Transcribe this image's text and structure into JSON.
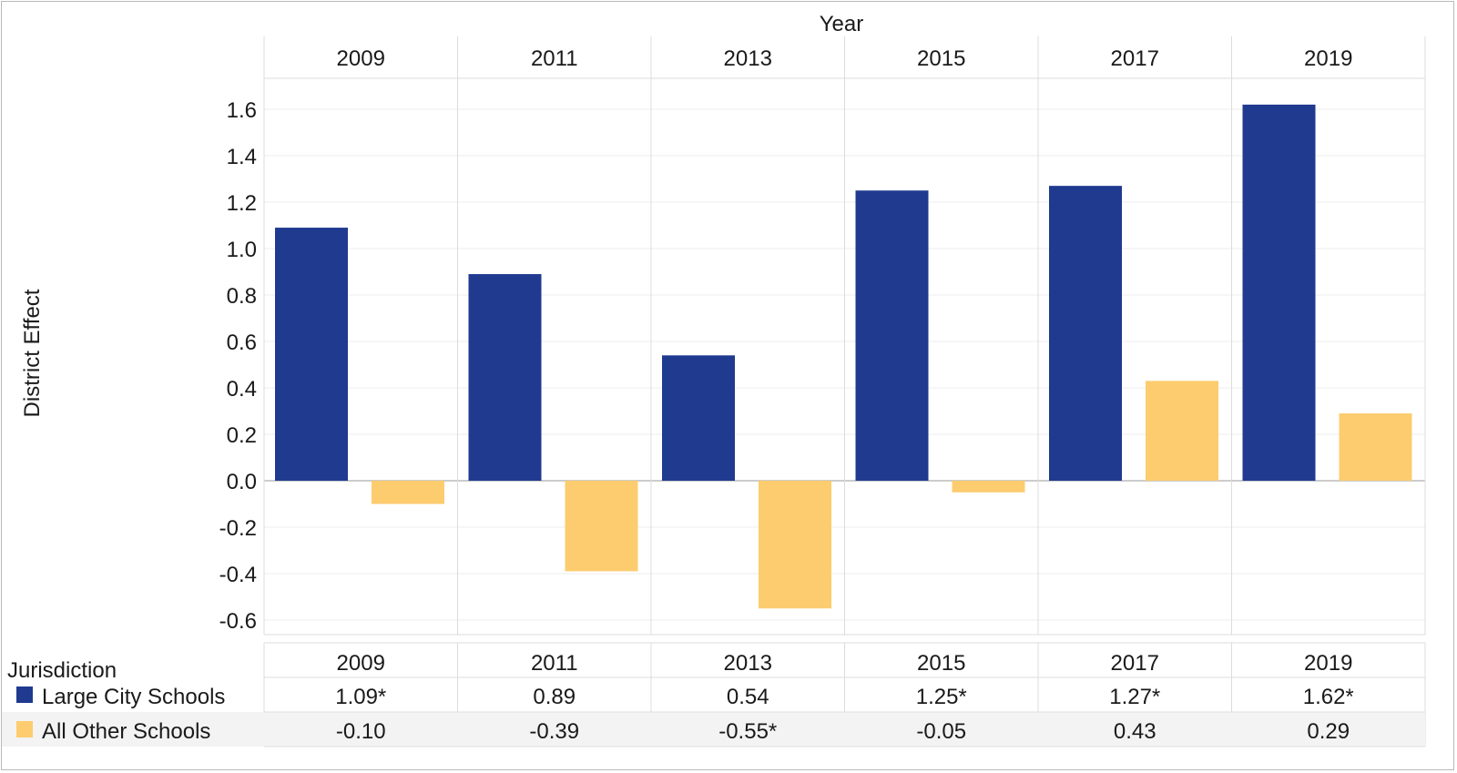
{
  "chart_data": {
    "type": "bar",
    "title": "",
    "top_axis_label": "Year",
    "ylabel": "District Effect",
    "categories": [
      "2009",
      "2011",
      "2013",
      "2015",
      "2017",
      "2019"
    ],
    "series": [
      {
        "name": "Large City Schools",
        "color": "#1f3a8f",
        "values": [
          1.09,
          0.89,
          0.54,
          1.25,
          1.27,
          1.62
        ],
        "labels": [
          "1.09*",
          "0.89",
          "0.54",
          "1.25*",
          "1.27*",
          "1.62*"
        ]
      },
      {
        "name": "All Other Schools",
        "color": "#fccc6e",
        "values": [
          -0.1,
          -0.39,
          -0.55,
          -0.05,
          0.43,
          0.29
        ],
        "labels": [
          "-0.10",
          "-0.39",
          "-0.55*",
          "-0.05",
          "0.43",
          "0.29"
        ]
      }
    ],
    "ylim": [
      -0.65,
      1.7
    ],
    "yticks": [
      "-0.6",
      "-0.4",
      "-0.2",
      "0.0",
      "0.2",
      "0.4",
      "0.6",
      "0.8",
      "1.0",
      "1.2",
      "1.4",
      "1.6"
    ],
    "grid": true,
    "table": {
      "header_label": "Jurisdiction"
    }
  }
}
